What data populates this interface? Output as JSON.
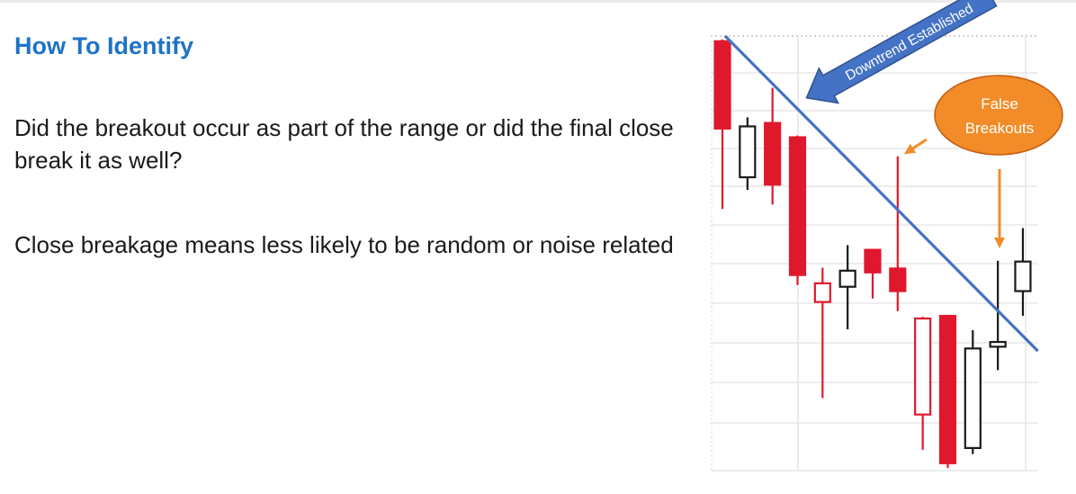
{
  "slide": {
    "title": "How To Identify",
    "bullets": [
      "Did the breakout occur as part of the range or did the final close break it as well?",
      "Close breakage means less likely to be random or noise related"
    ]
  },
  "chart_data": {
    "type": "candlestick",
    "title": "",
    "xlabel": "",
    "ylabel": "",
    "grid": true,
    "ylim": [
      0,
      100
    ],
    "colors": {
      "bearish": "#e0182d",
      "bullish": "#1a1a1a",
      "trendline": "#4472c4",
      "callout": "#f28c28"
    },
    "candles": [
      {
        "open": 98.8,
        "close": 78.7,
        "high": 99.2,
        "low": 60.2,
        "color": "red",
        "fill": "solid"
      },
      {
        "open": 67.5,
        "close": 79.2,
        "high": 81.3,
        "low": 64.6,
        "color": "black",
        "fill": "hollow"
      },
      {
        "open": 80.0,
        "close": 65.8,
        "high": 88.1,
        "low": 61.2,
        "color": "red",
        "fill": "solid"
      },
      {
        "open": 76.7,
        "close": 45.0,
        "high": 77.1,
        "low": 42.7,
        "color": "red",
        "fill": "solid"
      },
      {
        "open": 38.8,
        "close": 43.1,
        "high": 46.7,
        "low": 16.7,
        "color": "red",
        "fill": "hollow"
      },
      {
        "open": 42.3,
        "close": 46.0,
        "high": 51.9,
        "low": 32.5,
        "color": "black",
        "fill": "hollow"
      },
      {
        "open": 50.8,
        "close": 45.6,
        "high": 51.0,
        "low": 39.6,
        "color": "red",
        "fill": "solid"
      },
      {
        "open": 46.5,
        "close": 41.3,
        "high": 72.3,
        "low": 36.7,
        "color": "red",
        "fill": "solid"
      },
      {
        "open": 35.0,
        "close": 12.9,
        "high": 35.4,
        "low": 4.8,
        "color": "red",
        "fill": "hollow"
      },
      {
        "open": 35.6,
        "close": 1.7,
        "high": 35.6,
        "low": 0.6,
        "color": "red",
        "fill": "solid"
      },
      {
        "open": 5.2,
        "close": 28.1,
        "high": 32.3,
        "low": 3.8,
        "color": "black",
        "fill": "hollow"
      },
      {
        "open": 28.5,
        "close": 29.6,
        "high": 48.3,
        "low": 23.1,
        "color": "black",
        "fill": "hollow"
      },
      {
        "open": 41.3,
        "close": 48.1,
        "high": 55.8,
        "low": 35.6,
        "color": "black",
        "fill": "hollow"
      }
    ],
    "trendline": {
      "start": {
        "index": 0,
        "value": 100
      },
      "end": {
        "index": 12.6,
        "value": 27.5
      }
    },
    "annotations": [
      {
        "type": "arrow-label",
        "text": "Downtrend Established"
      },
      {
        "type": "callout",
        "lines": [
          "False",
          "Breakouts"
        ]
      }
    ]
  }
}
